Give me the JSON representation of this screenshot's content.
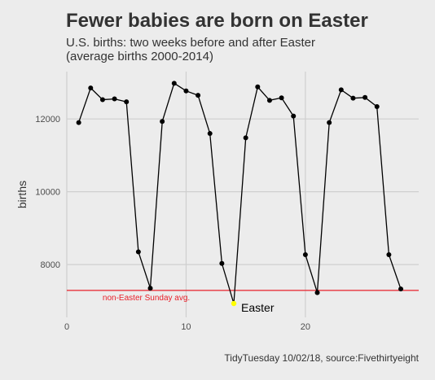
{
  "chart_data": {
    "type": "line",
    "title": "Fewer babies are born on Easter",
    "subtitle": "U.S. births: two weeks before and after Easter\n(average births 2000-2014)",
    "caption": "TidyTuesday 10/02/18, source:Fivethirtyeight",
    "xlabel": "",
    "ylabel": "births",
    "xlim": [
      0,
      29.5
    ],
    "ylim": [
      6550,
      13300
    ],
    "x_ticks": [
      0,
      10,
      20
    ],
    "y_ticks": [
      8000,
      10000,
      12000
    ],
    "grid": true,
    "x": [
      1,
      2,
      3,
      4,
      5,
      6,
      7,
      8,
      9,
      10,
      11,
      12,
      13,
      14,
      15,
      16,
      17,
      18,
      19,
      20,
      21,
      22,
      23,
      24,
      25,
      26,
      27,
      28
    ],
    "values": [
      11900,
      12850,
      12530,
      12550,
      12470,
      8350,
      7350,
      11930,
      12980,
      12770,
      12650,
      11600,
      8030,
      6930,
      11480,
      12880,
      12510,
      12580,
      12080,
      8270,
      7230,
      11900,
      12800,
      12570,
      12590,
      12340,
      8270,
      7330
    ],
    "highlight": {
      "x": 14,
      "value": 6930,
      "label": "Easter",
      "color": "#ffff00"
    },
    "reference_line": {
      "value": 7290,
      "label": "non-Easter Sunday avg.",
      "color": "#e8202a"
    },
    "line_color": "#000000",
    "point_color": "#000000"
  }
}
